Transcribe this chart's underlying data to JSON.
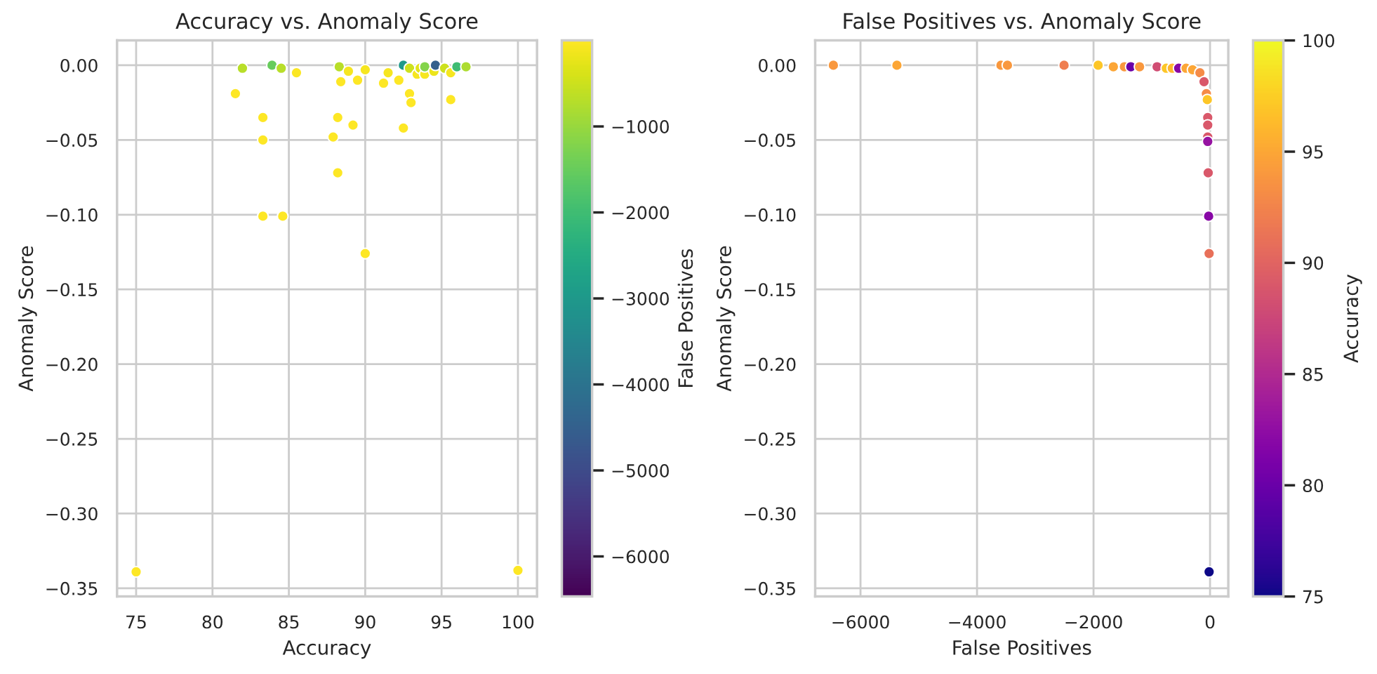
{
  "chart_data": [
    {
      "type": "scatter",
      "title": "Accuracy vs. Anomaly Score",
      "xlabel": "Accuracy",
      "ylabel": "Anomaly Score",
      "clabel": "False Positives",
      "clim": [
        -6466,
        0
      ],
      "cticks": [
        {
          "value": -1000,
          "label": "−1000"
        },
        {
          "value": -2000,
          "label": "−2000"
        },
        {
          "value": -3000,
          "label": "−3000"
        },
        {
          "value": -4000,
          "label": "−4000"
        },
        {
          "value": -5000,
          "label": "−5000"
        },
        {
          "value": -6000,
          "label": "−6000"
        }
      ],
      "xlim": [
        73.75,
        101.25
      ],
      "ylim": [
        -0.3555,
        0.0166
      ],
      "xticks": [
        75,
        80,
        85,
        90,
        95,
        100
      ],
      "yticks": [
        {
          "value": 0,
          "label": "0.00"
        },
        {
          "value": -0.05,
          "label": "−0.05"
        },
        {
          "value": -0.1,
          "label": "−0.10"
        },
        {
          "value": -0.15,
          "label": "−0.15"
        },
        {
          "value": -0.2,
          "label": "−0.20"
        },
        {
          "value": -0.25,
          "label": "−0.25"
        },
        {
          "value": -0.3,
          "label": "−0.30"
        },
        {
          "value": -0.35,
          "label": "−0.35"
        }
      ],
      "grid": true,
      "marker": "circle",
      "x": [
        75,
        100,
        81.96,
        83.9,
        84.5,
        85.5,
        81.5,
        83.3,
        83.3,
        83.3,
        84.6,
        88.3,
        88.9,
        88.4,
        89.5,
        90.0,
        88.2,
        89.2,
        87.9,
        88.2,
        90.0,
        91.2,
        91.5,
        92.2,
        92.5,
        92.9,
        92.9,
        93.0,
        92.5,
        93.4,
        93.6,
        93.9,
        93.9,
        94.5,
        94.6,
        95.2,
        95.6,
        95.6,
        96.0,
        96.6
      ],
      "values": [
        -0.339,
        -0.338,
        -0.002,
        0.0,
        -0.002,
        -0.005,
        -0.019,
        -0.035,
        -0.05,
        -0.101,
        -0.101,
        -0.001,
        -0.004,
        -0.011,
        -0.01,
        -0.003,
        -0.035,
        -0.04,
        -0.048,
        -0.072,
        -0.126,
        -0.012,
        -0.005,
        -0.01,
        0.0,
        -0.002,
        -0.019,
        -0.025,
        -0.042,
        -0.006,
        -0.002,
        -0.006,
        -0.001,
        -0.004,
        0.0,
        -0.002,
        -0.005,
        -0.023,
        -0.001,
        -0.001
      ],
      "cvalues": [
        -10,
        -10,
        -700,
        -1500,
        -700,
        -50,
        -10,
        -10,
        -10,
        -10,
        -10,
        -700,
        -100,
        -10,
        -10,
        -100,
        -10,
        -10,
        -10,
        -10,
        -10,
        -10,
        -100,
        -10,
        -3000,
        -500,
        -10,
        -10,
        -10,
        -100,
        -300,
        -100,
        -1200,
        -200,
        -4500,
        -500,
        -100,
        -10,
        -2000,
        -800
      ]
    },
    {
      "type": "scatter",
      "title": "False Positives vs. Anomaly Score",
      "xlabel": "False Positives",
      "ylabel": "Anomaly Score",
      "clabel": "Accuracy",
      "clim": [
        75,
        100
      ],
      "cticks": [
        75,
        80,
        85,
        90,
        95,
        100
      ],
      "xlim": [
        -6778,
        313
      ],
      "ylim": [
        -0.3555,
        0.0166
      ],
      "xticks": [
        {
          "value": -6000,
          "label": "−6000"
        },
        {
          "value": -4000,
          "label": "−4000"
        },
        {
          "value": -2000,
          "label": "−2000"
        },
        0
      ],
      "yticks": [
        {
          "value": 0,
          "label": "0.00"
        },
        {
          "value": -0.05,
          "label": "−0.05"
        },
        {
          "value": -0.1,
          "label": "−0.10"
        },
        {
          "value": -0.15,
          "label": "−0.15"
        },
        {
          "value": -0.2,
          "label": "−0.20"
        },
        {
          "value": -0.25,
          "label": "−0.25"
        },
        {
          "value": -0.3,
          "label": "−0.30"
        },
        {
          "value": -0.35,
          "label": "−0.35"
        }
      ],
      "grid": true,
      "marker": "circle",
      "x": [
        -6466,
        -5375,
        -3589,
        -3478,
        -2506,
        -1921,
        -1660,
        -1470,
        -1360,
        -1210,
        -909,
        -751,
        -648,
        -538,
        -411,
        -300,
        -174,
        -103,
        -63,
        -47,
        -40,
        -40,
        -40,
        -40,
        -32,
        -24,
        -16,
        -16
      ],
      "values": [
        0.0,
        0.0,
        0.0,
        0.0,
        0.0,
        0.0,
        -0.001,
        -0.001,
        -0.001,
        -0.001,
        -0.001,
        -0.002,
        -0.002,
        -0.002,
        -0.002,
        -0.003,
        -0.005,
        -0.011,
        -0.019,
        -0.023,
        -0.035,
        -0.04,
        -0.048,
        -0.051,
        -0.072,
        -0.101,
        -0.126,
        -0.339
      ],
      "cvalues": [
        94,
        95,
        94,
        94,
        92,
        97,
        95,
        94,
        80,
        94,
        88,
        97,
        96,
        82,
        95,
        95,
        93,
        89,
        93,
        97,
        89,
        89,
        89,
        83,
        89,
        82,
        91,
        75
      ]
    }
  ]
}
